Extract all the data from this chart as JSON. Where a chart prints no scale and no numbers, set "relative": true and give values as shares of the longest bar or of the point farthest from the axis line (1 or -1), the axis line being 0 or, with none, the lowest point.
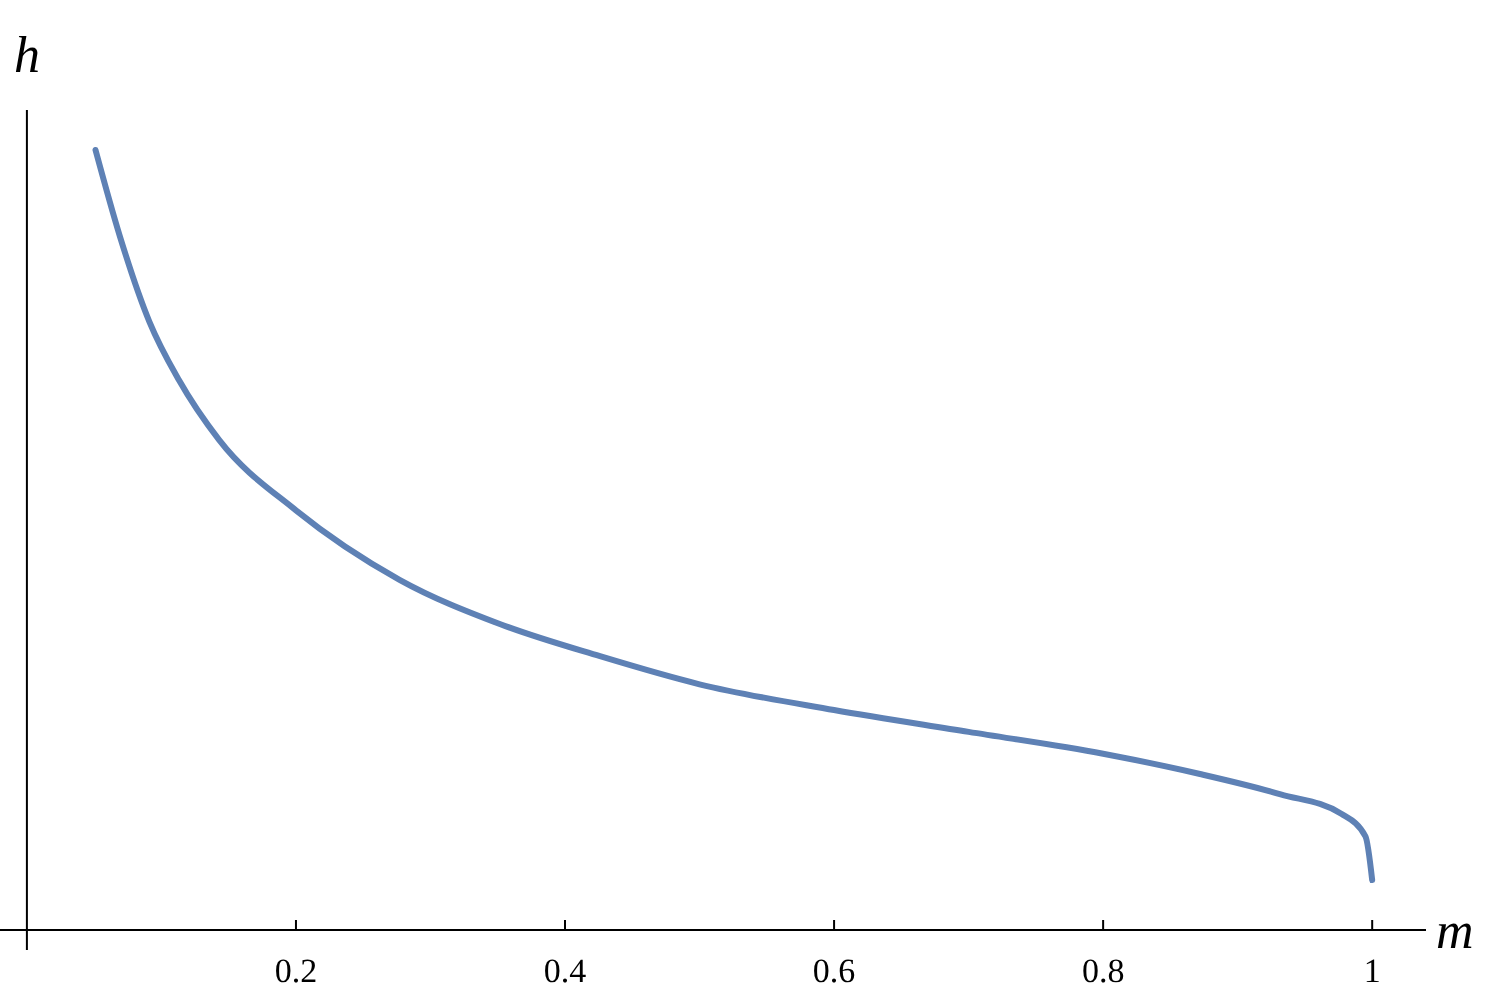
{
  "chart_data": {
    "type": "line",
    "xlabel": "m",
    "ylabel": "h",
    "relative": true,
    "xlim": [
      -0.02,
      1.04
    ],
    "xticks": [
      0.2,
      0.4,
      0.6,
      0.8,
      1
    ],
    "tick_labels": "x",
    "grid": false,
    "x": [
      0.051,
      0.069,
      0.091,
      0.113,
      0.143,
      0.2,
      0.277,
      0.352,
      0.426,
      0.5,
      0.6,
      0.7,
      0.8,
      0.872,
      0.932,
      0.977,
      0.995,
      1.0
    ],
    "series": [
      {
        "color": "#5e81b5",
        "values": [
          1,
          0.89,
          0.78,
          0.705,
          0.628,
          0.538,
          0.449,
          0.392,
          0.351,
          0.315,
          0.282,
          0.254,
          0.226,
          0.2,
          0.174,
          0.149,
          0.12,
          0.064
        ]
      }
    ]
  }
}
